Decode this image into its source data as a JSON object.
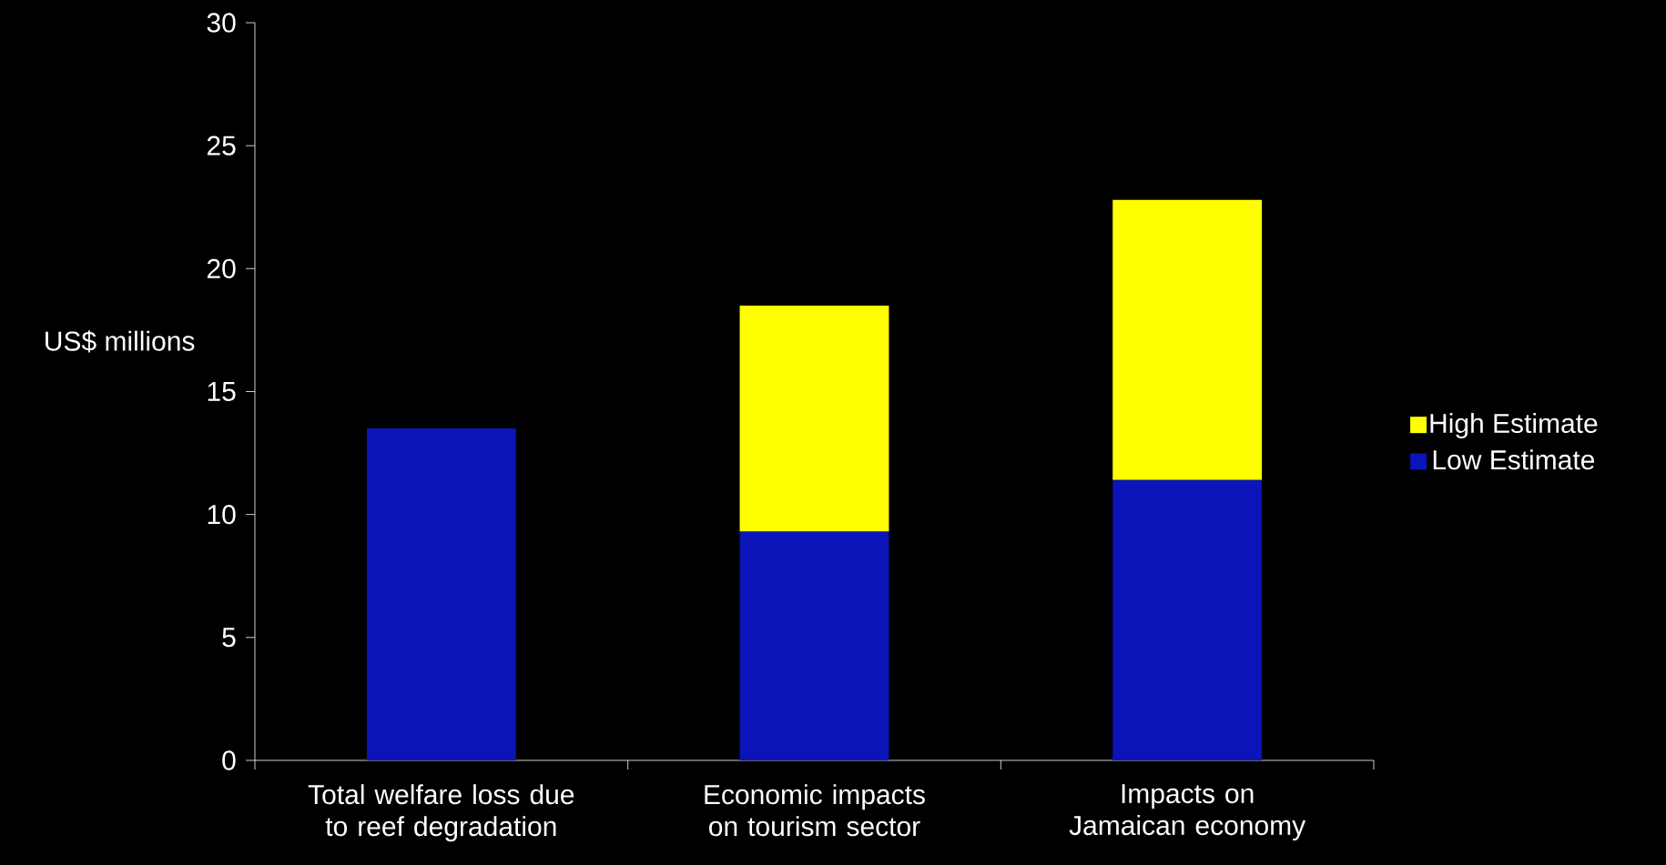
{
  "chart_data": {
    "type": "bar",
    "stacked": true,
    "ylabel": "US$ millions",
    "categories": [
      "Total welfare loss due to reef degradation",
      "Economic impacts on tourism sector",
      "Impacts on Jamaican economy"
    ],
    "series": [
      {
        "name": "Low Estimate",
        "color": "#0a14b8",
        "values": [
          13.5,
          9.3,
          11.4
        ]
      },
      {
        "name": "High Estimate",
        "color": "#ffff00",
        "values": [
          null,
          9.2,
          11.4
        ]
      }
    ],
    "ylim": [
      0,
      30
    ],
    "yticks": [
      0,
      5,
      10,
      15,
      20,
      25,
      30
    ],
    "legend": "right"
  }
}
